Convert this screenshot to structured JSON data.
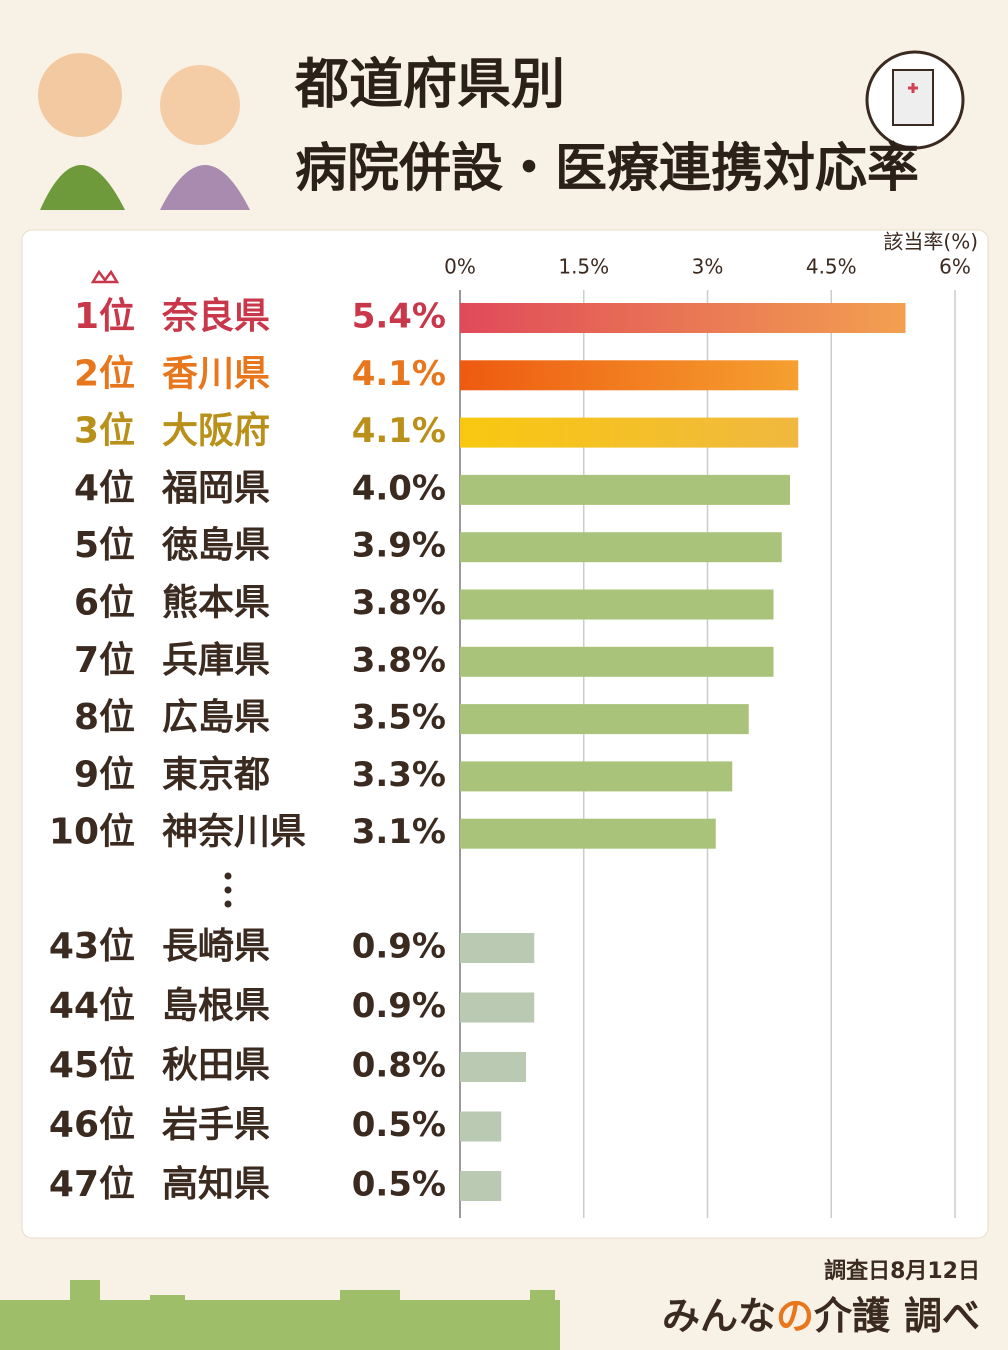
{
  "chart_data": {
    "type": "hbar",
    "title_lines": [
      "都道府県別",
      "病院併設・医療連携対応率"
    ],
    "axis_label": "該当率(%)",
    "ranks": [
      "1位",
      "2位",
      "3位",
      "4位",
      "5位",
      "6位",
      "7位",
      "8位",
      "9位",
      "10位",
      "43位",
      "44位",
      "45位",
      "46位",
      "47位"
    ],
    "categories": [
      "奈良県",
      "香川県",
      "大阪府",
      "福岡県",
      "徳島県",
      "熊本県",
      "兵庫県",
      "広島県",
      "東京都",
      "神奈川県",
      "長崎県",
      "島根県",
      "秋田県",
      "岩手県",
      "高知県"
    ],
    "values": [
      5.4,
      4.1,
      4.1,
      4.0,
      3.9,
      3.8,
      3.8,
      3.5,
      3.3,
      3.1,
      0.9,
      0.9,
      0.8,
      0.5,
      0.5
    ],
    "value_labels": [
      "5.4%",
      "4.1%",
      "4.1%",
      "4.0%",
      "3.9%",
      "3.8%",
      "3.8%",
      "3.5%",
      "3.3%",
      "3.1%",
      "0.9%",
      "0.9%",
      "0.8%",
      "0.5%",
      "0.5%"
    ],
    "colors": [
      "#e04a5a",
      "#ee5a10",
      "#f8c810",
      "#a9c47a",
      "#a9c47a",
      "#a9c47a",
      "#a9c47a",
      "#a9c47a",
      "#a9c47a",
      "#a9c47a",
      "#b9c9b2",
      "#b9c9b2",
      "#b9c9b2",
      "#b9c9b2",
      "#b9c9b2"
    ],
    "colors_end": [
      "#f2a050",
      "#f5a030",
      "#f0b840",
      "#a9c47a",
      "#a9c47a",
      "#a9c47a",
      "#a9c47a",
      "#a9c47a",
      "#a9c47a",
      "#a9c47a",
      "#b9c9b2",
      "#b9c9b2",
      "#b9c9b2",
      "#b9c9b2",
      "#b9c9b2"
    ],
    "label_colors": [
      "#c8374a",
      "#e8761c",
      "#b8901a",
      "#3b2a20",
      "#3b2a20",
      "#3b2a20",
      "#3b2a20",
      "#3b2a20",
      "#3b2a20",
      "#3b2a20",
      "#3b2a20",
      "#3b2a20",
      "#3b2a20",
      "#3b2a20",
      "#3b2a20"
    ],
    "xlim": [
      0,
      6
    ],
    "xticks": [
      {
        "value": 0,
        "label": "0%"
      },
      {
        "value": 1.5,
        "label": "1.5%"
      },
      {
        "value": 3,
        "label": "3%"
      },
      {
        "value": 4.5,
        "label": "4.5%"
      },
      {
        "value": 6,
        "label": "6%"
      }
    ],
    "grid": true,
    "survey_date": "調査日8月12日",
    "brand": [
      "みんな",
      "の",
      "介護"
    ],
    "brand_suffix": "調べ"
  }
}
